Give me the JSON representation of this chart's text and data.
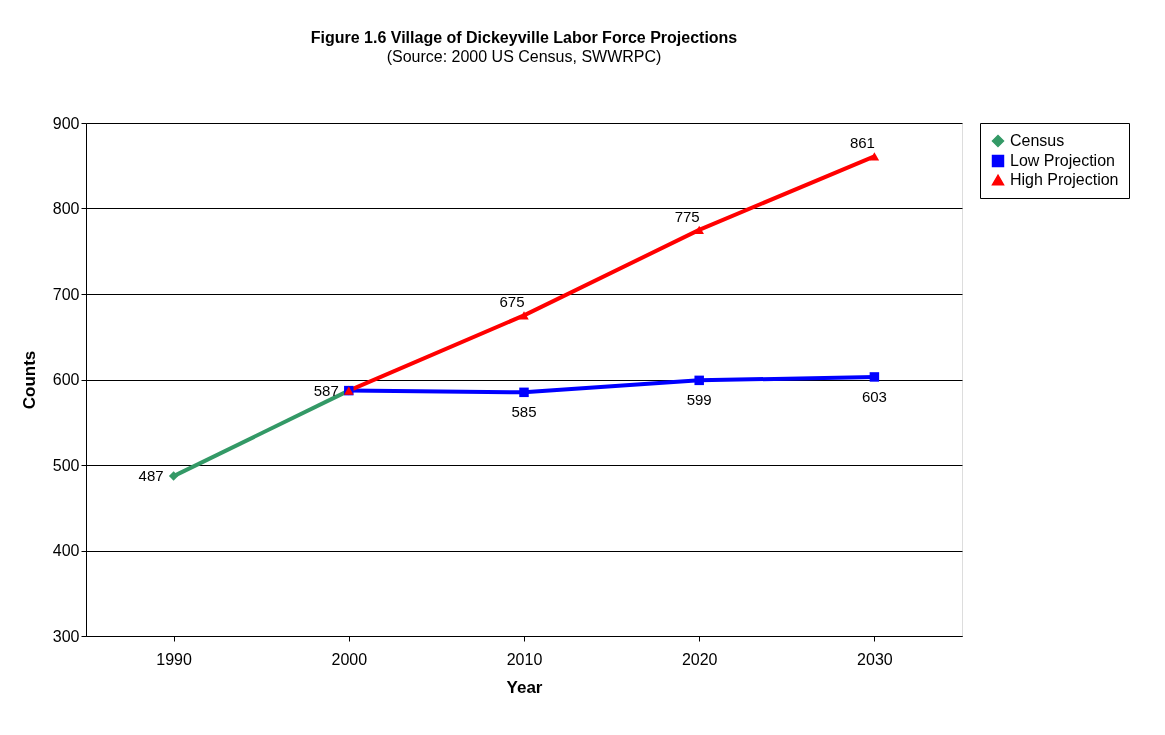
{
  "chart_data": {
    "type": "line",
    "title": "Figure 1.6 Village of Dickeyville Labor Force Projections",
    "subtitle": "(Source:  2000 US Census, SWWRPC)",
    "xlabel": "Year",
    "ylabel": "Counts",
    "categories": [
      "1990",
      "2000",
      "2010",
      "2020",
      "2030"
    ],
    "series": [
      {
        "name": "Census",
        "color": "#339966",
        "marker": "diamond",
        "values": [
          487,
          587,
          null,
          null,
          null
        ],
        "value_labels": [
          "487",
          "587",
          null,
          null,
          null
        ]
      },
      {
        "name": "Low Projection",
        "color": "#0000ff",
        "marker": "square",
        "values": [
          null,
          587,
          585,
          599,
          603
        ],
        "value_labels": [
          null,
          null,
          "585",
          "599",
          "603"
        ]
      },
      {
        "name": "High Projection",
        "color": "#ff0000",
        "marker": "triangle",
        "values": [
          null,
          587,
          675,
          775,
          861
        ],
        "value_labels": [
          null,
          null,
          "675",
          "775",
          "861"
        ]
      }
    ],
    "ylim": [
      300,
      900
    ],
    "yticks": [
      300,
      400,
      500,
      600,
      700,
      800,
      900
    ],
    "grid": "y",
    "legend": "right",
    "line_style": "solid"
  }
}
